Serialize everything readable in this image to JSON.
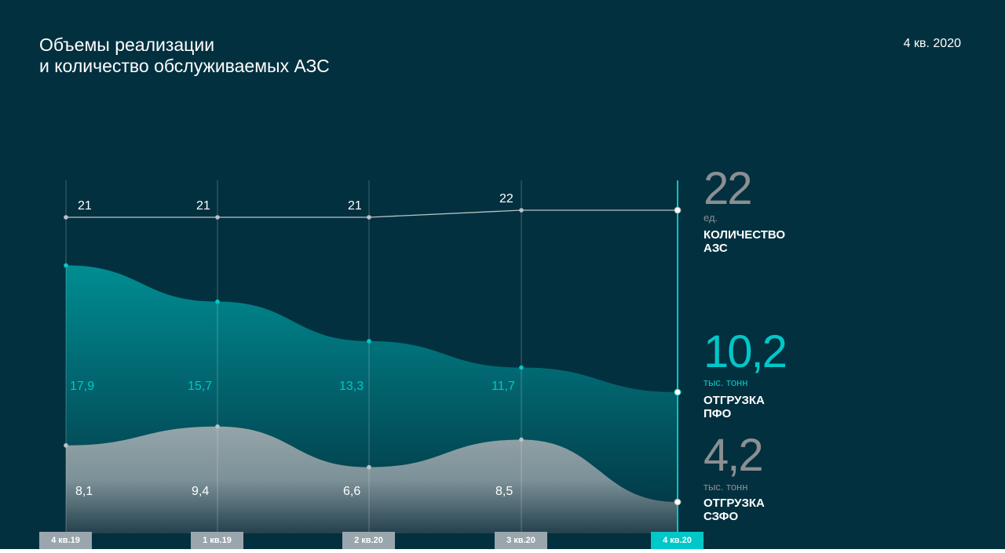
{
  "header": {
    "title_line1": "Объемы реализации",
    "title_line2": "и количество обслуживаемых АЗС",
    "period": "4 кв. 2020"
  },
  "summary": [
    {
      "value": "22",
      "unit": "ед.",
      "label_line1": "КОЛИЧЕСТВО",
      "label_line2": "АЗС"
    },
    {
      "value": "10,2",
      "unit": "тыс. тонн",
      "label_line1": "ОТГРУЗКА",
      "label_line2": "ПФО"
    },
    {
      "value": "4,2",
      "unit": "тыс. тонн",
      "label_line1": "ОТГРУЗКА",
      "label_line2": "СЗФО"
    }
  ],
  "colors": {
    "background": "#03303f",
    "accent": "#00c8c8",
    "gray": "#9aa6ad"
  },
  "chart_data": {
    "type": "area",
    "title": "Объемы реализации и количество обслуживаемых АЗС",
    "categories": [
      "4 кв.19",
      "1 кв.19",
      "2 кв.20",
      "3 кв.20",
      "4 кв.20"
    ],
    "active_category": 4,
    "series": [
      {
        "name": "Количество АЗС",
        "type": "line",
        "values": [
          21,
          21,
          21,
          22,
          22
        ],
        "labels": [
          "21",
          "21",
          "21",
          "22",
          ""
        ]
      },
      {
        "name": "Отгрузка ПФО",
        "type": "area",
        "values": [
          17.9,
          15.7,
          13.3,
          11.7,
          10.2
        ],
        "labels": [
          "17,9",
          "15,7",
          "13,3",
          "11,7",
          ""
        ]
      },
      {
        "name": "Отгрузка СЗФО",
        "type": "area",
        "values": [
          8.1,
          9.4,
          6.6,
          8.5,
          4.2
        ],
        "labels": [
          "8,1",
          "9,4",
          "6,6",
          "8,5",
          ""
        ]
      }
    ]
  }
}
